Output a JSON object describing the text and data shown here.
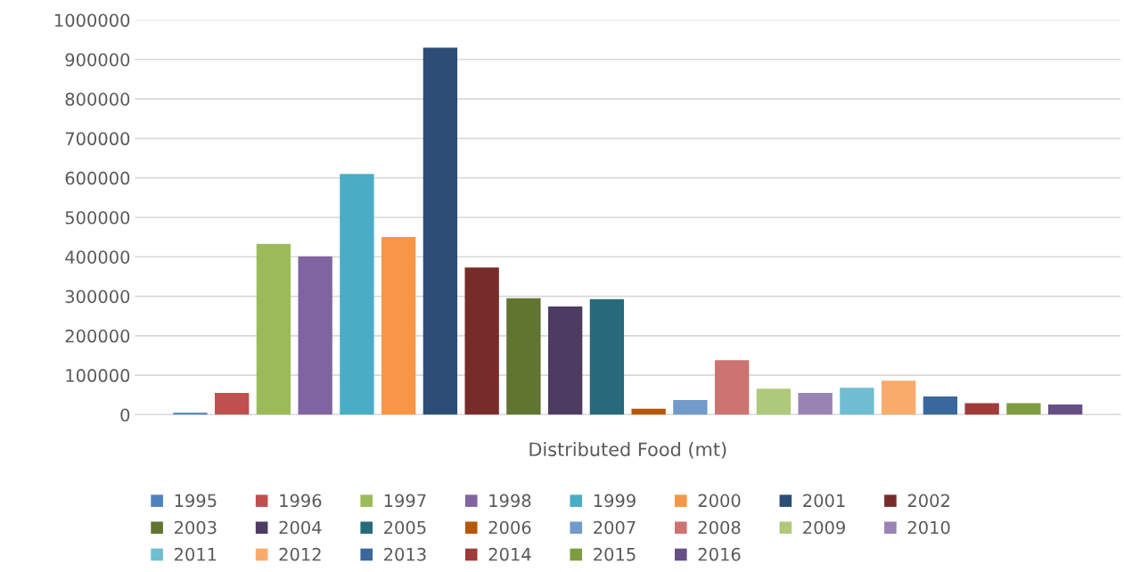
{
  "chart_data": {
    "type": "bar",
    "categories": [
      "Distributed Food (mt)"
    ],
    "series": [
      {
        "name": "1995",
        "color": "#4f81bd",
        "values": [
          5000
        ]
      },
      {
        "name": "1996",
        "color": "#c0504d",
        "values": [
          55000
        ]
      },
      {
        "name": "1997",
        "color": "#9bbb59",
        "values": [
          433000
        ]
      },
      {
        "name": "1998",
        "color": "#8064a2",
        "values": [
          401000
        ]
      },
      {
        "name": "1999",
        "color": "#4bacc6",
        "values": [
          610000
        ]
      },
      {
        "name": "2000",
        "color": "#f79646",
        "values": [
          450000
        ]
      },
      {
        "name": "2001",
        "color": "#2c4d75",
        "values": [
          930000
        ]
      },
      {
        "name": "2002",
        "color": "#772c2a",
        "values": [
          373000
        ]
      },
      {
        "name": "2003",
        "color": "#5f7530",
        "values": [
          295000
        ]
      },
      {
        "name": "2004",
        "color": "#4d3b62",
        "values": [
          274000
        ]
      },
      {
        "name": "2005",
        "color": "#276a7c",
        "values": [
          293000
        ]
      },
      {
        "name": "2006",
        "color": "#b65708",
        "values": [
          15000
        ]
      },
      {
        "name": "2007",
        "color": "#729aca",
        "values": [
          37000
        ]
      },
      {
        "name": "2008",
        "color": "#cd7371",
        "values": [
          138000
        ]
      },
      {
        "name": "2009",
        "color": "#afc97a",
        "values": [
          66000
        ]
      },
      {
        "name": "2010",
        "color": "#9983b5",
        "values": [
          55000
        ]
      },
      {
        "name": "2011",
        "color": "#6fbdd1",
        "values": [
          68000
        ]
      },
      {
        "name": "2012",
        "color": "#f9ab6b",
        "values": [
          86000
        ]
      },
      {
        "name": "2013",
        "color": "#3a679c",
        "values": [
          46000
        ]
      },
      {
        "name": "2014",
        "color": "#9f3b38",
        "values": [
          29000
        ]
      },
      {
        "name": "2015",
        "color": "#7e9c40",
        "values": [
          29000
        ]
      },
      {
        "name": "2016",
        "color": "#664f83",
        "values": [
          26000
        ]
      }
    ],
    "ylim": [
      0,
      1000000
    ],
    "yticks": [
      0,
      100000,
      200000,
      300000,
      400000,
      500000,
      600000,
      700000,
      800000,
      900000,
      1000000
    ],
    "grid": "y",
    "legend": "bottom"
  }
}
